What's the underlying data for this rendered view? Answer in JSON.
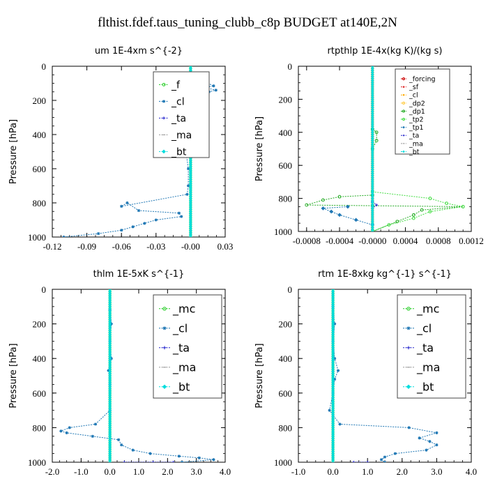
{
  "figure_title": "flthist.fdef.taus_tuning_clubb_c8p  BUDGET at140E,2N",
  "chart_data": [
    {
      "type": "line",
      "title": "um  1E-4xm s^{-2}",
      "ylabel": "Pressure [hPa]",
      "xlim": [
        -0.12,
        0.03
      ],
      "ylim": [
        1000,
        0
      ],
      "xticks": [
        -0.12,
        -0.09,
        -0.06,
        -0.03,
        0.0,
        0.03
      ],
      "xtick_labels": [
        "-0.12",
        "-0.09",
        "-0.06",
        "-0.03",
        "-0.00",
        "0.03"
      ],
      "yticks": [
        0,
        200,
        400,
        600,
        800,
        1000
      ],
      "legend_position": "top-right",
      "series": [
        {
          "name": "_f",
          "color": "#22cc22",
          "points": [
            [
              0.0,
              0
            ],
            [
              0.0,
              100
            ],
            [
              0.0,
              200
            ],
            [
              0.0,
              300
            ],
            [
              0.0,
              400
            ],
            [
              0.0,
              500
            ],
            [
              0.0,
              600
            ],
            [
              0.0,
              700
            ],
            [
              0.0,
              800
            ],
            [
              0.0,
              900
            ],
            [
              0.0,
              1000
            ]
          ]
        },
        {
          "name": "_cl",
          "color": "#1f77b4",
          "points": [
            [
              0.0,
              90
            ],
            [
              0.015,
              100
            ],
            [
              0.02,
              115
            ],
            [
              0.012,
              125
            ],
            [
              0.022,
              140
            ],
            [
              0.016,
              150
            ],
            [
              0.0,
              160
            ],
            [
              -0.008,
              175
            ],
            [
              -0.014,
              200
            ],
            [
              -0.008,
              220
            ],
            [
              -0.012,
              240
            ],
            [
              -0.004,
              260
            ],
            [
              -0.006,
              300
            ],
            [
              -0.003,
              340
            ],
            [
              -0.006,
              380
            ],
            [
              -0.002,
              430
            ],
            [
              -0.004,
              500
            ],
            [
              -0.002,
              600
            ],
            [
              -0.002,
              700
            ],
            [
              -0.003,
              750
            ],
            [
              -0.06,
              820
            ],
            [
              -0.055,
              800
            ],
            [
              -0.045,
              845
            ],
            [
              -0.01,
              860
            ],
            [
              -0.008,
              880
            ],
            [
              -0.03,
              900
            ],
            [
              -0.04,
              920
            ],
            [
              -0.05,
              940
            ],
            [
              -0.06,
              960
            ],
            [
              -0.08,
              980
            ],
            [
              -0.11,
              1000
            ]
          ]
        },
        {
          "name": "_ta",
          "color": "#2222cc",
          "points": [
            [
              0.0,
              280
            ],
            [
              -0.002,
              300
            ],
            [
              0.0,
              320
            ]
          ]
        },
        {
          "name": "_ma",
          "color": "#999999",
          "points": [
            [
              0.0,
              0
            ],
            [
              0.0,
              1000
            ]
          ]
        },
        {
          "name": "_bt",
          "color": "#00dddd",
          "points": [
            [
              0.0,
              0
            ],
            [
              0.0,
              1000
            ]
          ]
        }
      ],
      "legend_labels": [
        "_f",
        "_cl",
        "_ta",
        "_ma",
        "_bt"
      ]
    },
    {
      "type": "line",
      "title": "rtpthlp  1E-4x(kg K)/(kg s)",
      "ylabel": "Pressure [hPa]",
      "xlim": [
        -0.0009,
        0.0012
      ],
      "ylim": [
        1000,
        0
      ],
      "xticks": [
        -0.0008,
        -0.0004,
        0.0,
        0.0004,
        0.0008,
        0.0012
      ],
      "xtick_labels": [
        "-0.0008",
        "-0.0004",
        "-0.0000",
        "0.0004",
        "0.0008",
        "0.0012"
      ],
      "yticks": [
        0,
        200,
        400,
        600,
        800,
        1000
      ],
      "legend_position": "top-right",
      "series": [
        {
          "name": "_forcing",
          "color": "#cc0000",
          "points": [
            [
              0.0,
              0
            ],
            [
              0.0,
              1000
            ]
          ]
        },
        {
          "name": "_sf",
          "color": "#dd2222",
          "points": [
            [
              0.0,
              0
            ],
            [
              0.0,
              1000
            ]
          ]
        },
        {
          "name": "_cl",
          "color": "#ffaa00",
          "points": [
            [
              0.0,
              0
            ],
            [
              0.0,
              1000
            ]
          ]
        },
        {
          "name": "_dp2",
          "color": "#ffcc44",
          "points": [
            [
              0.0,
              0
            ],
            [
              0.0,
              1000
            ]
          ]
        },
        {
          "name": "_dp1",
          "color": "#22aa22",
          "points": [
            [
              0.0,
              380
            ],
            [
              5e-05,
              400
            ],
            [
              5e-05,
              450
            ],
            [
              0.0,
              500
            ],
            [
              0.0,
              780
            ],
            [
              -0.0004,
              790
            ],
            [
              -0.0006,
              810
            ],
            [
              -0.0008,
              840
            ],
            [
              0.0011,
              850
            ],
            [
              0.0006,
              870
            ],
            [
              0.0005,
              900
            ],
            [
              0.0003,
              940
            ],
            [
              0.0,
              1000
            ]
          ]
        },
        {
          "name": "_tp2",
          "color": "#44dd44",
          "points": [
            [
              0.0,
              760
            ],
            [
              0.0007,
              800
            ],
            [
              0.0009,
              830
            ],
            [
              0.0011,
              850
            ],
            [
              0.0007,
              880
            ],
            [
              0.0005,
              920
            ],
            [
              0.0002,
              960
            ],
            [
              0.0,
              1000
            ]
          ]
        },
        {
          "name": "_tp1",
          "color": "#1f77b4",
          "points": [
            [
              -0.0003,
              850
            ],
            [
              -0.0006,
              860
            ],
            [
              -0.0005,
              880
            ],
            [
              -0.0004,
              900
            ],
            [
              -0.0002,
              930
            ],
            [
              0.0,
              960
            ]
          ]
        },
        {
          "name": "_ta",
          "color": "#2222cc",
          "points": [
            [
              0.0,
              820
            ],
            [
              5e-05,
              840
            ],
            [
              0.0,
              860
            ]
          ]
        },
        {
          "name": "_ma",
          "color": "#999999",
          "points": [
            [
              0.0,
              0
            ],
            [
              0.0,
              1000
            ]
          ]
        },
        {
          "name": "_bt",
          "color": "#00dddd",
          "points": [
            [
              0.0,
              0
            ],
            [
              0.0,
              1000
            ]
          ]
        }
      ],
      "legend_labels": [
        "_forcing",
        "_sf",
        "_cl",
        "_dp2",
        "_dp1",
        "_tp2",
        "_tp1",
        "_ta",
        "_ma",
        "_bt"
      ]
    },
    {
      "type": "line",
      "title": "thlm  1E-5xK s^{-1}",
      "ylabel": "Pressure [hPa]",
      "xlim": [
        -2.0,
        4.0
      ],
      "ylim": [
        1000,
        0
      ],
      "xticks": [
        -2.0,
        -1.0,
        0.0,
        1.0,
        2.0,
        3.0,
        4.0
      ],
      "xtick_labels": [
        "-2.0",
        "-1.0",
        "0.0",
        "1.0",
        "2.0",
        "3.0",
        "4.0"
      ],
      "yticks": [
        0,
        200,
        400,
        600,
        800,
        1000
      ],
      "legend_position": "top-right",
      "series": [
        {
          "name": "_mc",
          "color": "#22cc22",
          "points": [
            [
              0.0,
              0
            ],
            [
              0.0,
              1000
            ]
          ]
        },
        {
          "name": "_cl",
          "color": "#1f77b4",
          "points": [
            [
              0.0,
              120
            ],
            [
              0.05,
              200
            ],
            [
              0.0,
              300
            ],
            [
              0.05,
              400
            ],
            [
              -0.05,
              470
            ],
            [
              0.0,
              550
            ],
            [
              0.0,
              700
            ],
            [
              -0.5,
              780
            ],
            [
              -1.4,
              800
            ],
            [
              -1.7,
              820
            ],
            [
              -1.5,
              830
            ],
            [
              -0.6,
              850
            ],
            [
              0.3,
              870
            ],
            [
              0.4,
              900
            ],
            [
              0.8,
              930
            ],
            [
              1.4,
              950
            ],
            [
              2.4,
              965
            ],
            [
              3.1,
              975
            ],
            [
              3.6,
              985
            ],
            [
              2.5,
              1000
            ]
          ]
        },
        {
          "name": "_ta",
          "color": "#2222cc",
          "points": [
            [
              0.5,
              1000
            ],
            [
              1.5,
              1000
            ],
            [
              2.2,
              1000
            ]
          ]
        },
        {
          "name": "_ma",
          "color": "#999999",
          "points": [
            [
              0.0,
              0
            ],
            [
              0.0,
              1000
            ]
          ]
        },
        {
          "name": "_bt",
          "color": "#00dddd",
          "points": [
            [
              0.0,
              0
            ],
            [
              0.0,
              1000
            ]
          ]
        }
      ],
      "legend_labels": [
        "_mc",
        "_cl",
        "_ta",
        "_ma",
        "_bt"
      ]
    },
    {
      "type": "line",
      "title": "rtm  1E-8xkg kg^{-1} s^{-1}",
      "ylabel": "Pressure [hPa]",
      "xlim": [
        -1.0,
        4.0
      ],
      "ylim": [
        1000,
        0
      ],
      "xticks": [
        -1.0,
        0.0,
        1.0,
        2.0,
        3.0,
        4.0
      ],
      "xtick_labels": [
        "-1.0",
        "0.0",
        "1.0",
        "2.0",
        "3.0",
        "4.0"
      ],
      "yticks": [
        0,
        200,
        400,
        600,
        800,
        1000
      ],
      "legend_position": "top-right",
      "series": [
        {
          "name": "_mc",
          "color": "#22cc22",
          "points": [
            [
              0.0,
              0
            ],
            [
              0.0,
              1000
            ]
          ]
        },
        {
          "name": "_cl",
          "color": "#1f77b4",
          "points": [
            [
              0.0,
              100
            ],
            [
              0.05,
              200
            ],
            [
              0.0,
              300
            ],
            [
              0.05,
              400
            ],
            [
              0.15,
              470
            ],
            [
              0.05,
              520
            ],
            [
              0.0,
              600
            ],
            [
              -0.1,
              700
            ],
            [
              0.2,
              780
            ],
            [
              2.2,
              800
            ],
            [
              3.0,
              830
            ],
            [
              2.5,
              860
            ],
            [
              2.8,
              880
            ],
            [
              3.0,
              900
            ],
            [
              2.7,
              930
            ],
            [
              1.8,
              950
            ],
            [
              1.5,
              970
            ],
            [
              1.4,
              985
            ],
            [
              1.5,
              1000
            ]
          ]
        },
        {
          "name": "_ta",
          "color": "#2222cc",
          "points": [
            [
              0.6,
              1000
            ],
            [
              1.0,
              1000
            ]
          ]
        },
        {
          "name": "_ma",
          "color": "#999999",
          "points": [
            [
              0.0,
              0
            ],
            [
              0.0,
              1000
            ]
          ]
        },
        {
          "name": "_bt",
          "color": "#00dddd",
          "points": [
            [
              0.0,
              0
            ],
            [
              0.0,
              1000
            ]
          ]
        }
      ],
      "legend_labels": [
        "_mc",
        "_cl",
        "_ta",
        "_ma",
        "_bt"
      ]
    }
  ]
}
